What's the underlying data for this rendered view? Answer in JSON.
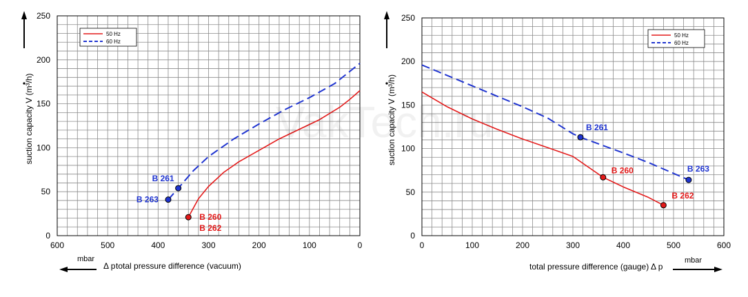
{
  "watermark": "VakTech.ru",
  "colors": {
    "hz50": "#e41a1a",
    "hz60": "#1f34d0",
    "grid": "#8a8a8a",
    "axis": "#000000"
  },
  "chart_data": [
    {
      "type": "line",
      "xlabel": "total pressure difference (vacuum)",
      "xlabel_prefix": "Δ p",
      "x_unit": "mbar",
      "ylabel": "suction capacity V (m³/h)",
      "xlim": [
        600,
        0
      ],
      "ylim": [
        0,
        250
      ],
      "x_reversed": true,
      "xticks": [
        600,
        500,
        400,
        300,
        200,
        100,
        0
      ],
      "yticks": [
        0,
        50,
        100,
        150,
        200,
        250
      ],
      "grid": true,
      "legend_position": "top-left",
      "series": [
        {
          "name": "50 Hz",
          "style": "solid",
          "color": "#e41a1a",
          "x": [
            340,
            320,
            300,
            270,
            240,
            200,
            160,
            120,
            80,
            40,
            20,
            0
          ],
          "y": [
            21,
            42,
            56,
            72,
            84,
            97,
            110,
            121,
            132,
            146,
            155,
            165
          ]
        },
        {
          "name": "60 Hz",
          "style": "dashed",
          "color": "#1f34d0",
          "x": [
            380,
            360,
            330,
            300,
            250,
            200,
            150,
            100,
            50,
            0
          ],
          "y": [
            41,
            54,
            74,
            90,
            110,
            127,
            143,
            157,
            173,
            196
          ]
        }
      ],
      "points": [
        {
          "x": 360,
          "y": 54,
          "color": "#1f34d0",
          "labels": [
            "B 261"
          ]
        },
        {
          "x": 380,
          "y": 41,
          "color": "#1f34d0",
          "labels": [
            "B 263"
          ]
        },
        {
          "x": 340,
          "y": 21,
          "color": "#e41a1a",
          "labels": [
            "B 260",
            "B 262"
          ]
        }
      ]
    },
    {
      "type": "line",
      "xlabel": "total pressure difference (gauge)",
      "xlabel_suffix": "Δ p",
      "x_unit": "mbar",
      "ylabel": "suction capacity V (m³/h)",
      "xlim": [
        0,
        600
      ],
      "ylim": [
        0,
        250
      ],
      "x_reversed": false,
      "xticks": [
        0,
        100,
        200,
        300,
        400,
        500,
        600
      ],
      "yticks": [
        0,
        50,
        100,
        150,
        200,
        250
      ],
      "grid": true,
      "legend_position": "top-right",
      "series": [
        {
          "name": "50 Hz",
          "style": "solid",
          "color": "#e41a1a",
          "x": [
            0,
            50,
            100,
            150,
            200,
            250,
            300,
            360,
            400,
            450,
            480
          ],
          "y": [
            165,
            148,
            134,
            122,
            111,
            101,
            91,
            67,
            56,
            44,
            35
          ]
        },
        {
          "name": "60 Hz",
          "style": "dashed",
          "color": "#1f34d0",
          "x": [
            0,
            50,
            100,
            150,
            200,
            250,
            300,
            315,
            400,
            450,
            530
          ],
          "y": [
            196,
            184,
            172,
            160,
            148,
            135,
            117,
            113,
            95,
            84,
            64
          ]
        }
      ],
      "points": [
        {
          "x": 315,
          "y": 113,
          "color": "#1f34d0",
          "labels": [
            "B 261"
          ]
        },
        {
          "x": 530,
          "y": 64,
          "color": "#1f34d0",
          "labels": [
            "B 263"
          ]
        },
        {
          "x": 360,
          "y": 67,
          "color": "#e41a1a",
          "labels": [
            "B 260"
          ]
        },
        {
          "x": 480,
          "y": 35,
          "color": "#e41a1a",
          "labels": [
            "B 262"
          ]
        }
      ]
    }
  ]
}
